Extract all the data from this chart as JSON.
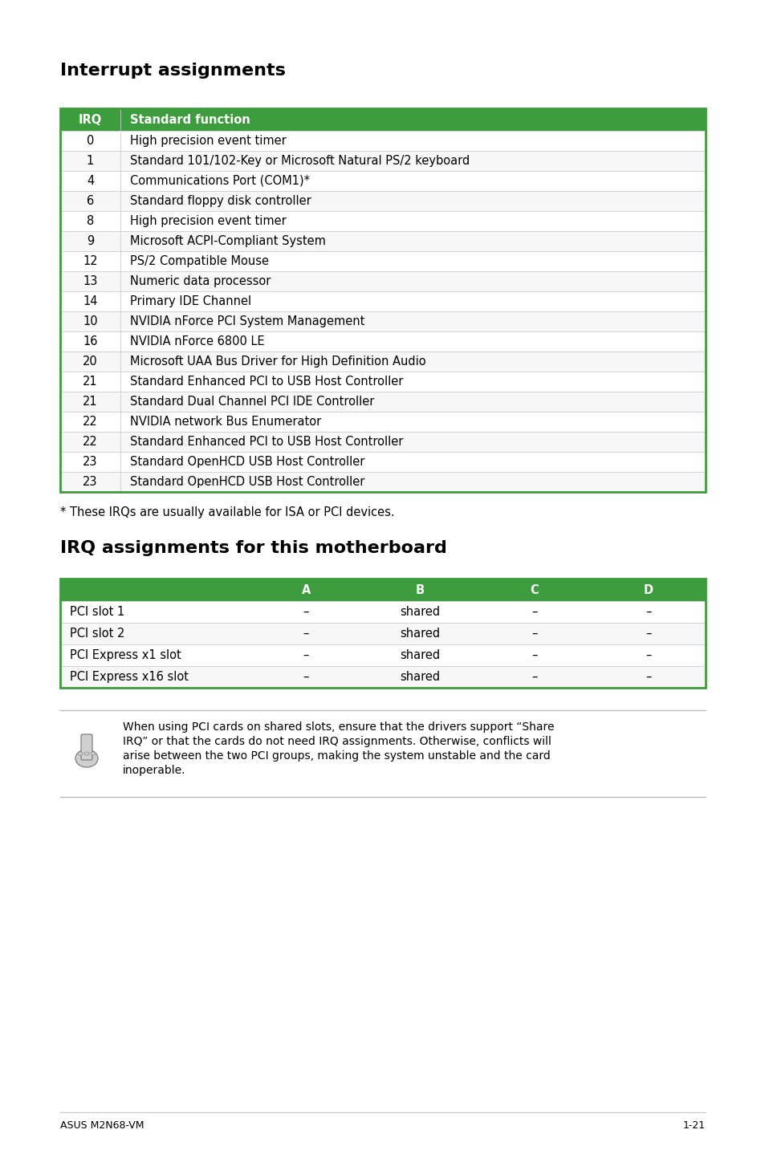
{
  "title1": "Interrupt assignments",
  "title2": "IRQ assignments for this motherboard",
  "header_color": "#3d9c3d",
  "header_text_color": "#ffffff",
  "border_color": "#3d9c3d",
  "text_color": "#000000",
  "irq_rows": [
    [
      "0",
      "High precision event timer"
    ],
    [
      "1",
      "Standard 101/102-Key or Microsoft Natural PS/2 keyboard"
    ],
    [
      "4",
      "Communications Port (COM1)*"
    ],
    [
      "6",
      "Standard floppy disk controller"
    ],
    [
      "8",
      "High precision event timer"
    ],
    [
      "9",
      "Microsoft ACPI-Compliant System"
    ],
    [
      "12",
      "PS/2 Compatible Mouse"
    ],
    [
      "13",
      "Numeric data processor"
    ],
    [
      "14",
      "Primary IDE Channel"
    ],
    [
      "10",
      "NVIDIA nForce PCI System Management"
    ],
    [
      "16",
      "NVIDIA nForce 6800 LE"
    ],
    [
      "20",
      "Microsoft UAA Bus Driver for High Definition Audio"
    ],
    [
      "21",
      "Standard Enhanced PCI to USB Host Controller"
    ],
    [
      "21",
      "Standard Dual Channel PCI IDE Controller"
    ],
    [
      "22",
      "NVIDIA network Bus Enumerator"
    ],
    [
      "22",
      "Standard Enhanced PCI to USB Host Controller"
    ],
    [
      "23",
      "Standard OpenHCD USB Host Controller"
    ],
    [
      "23",
      "Standard OpenHCD USB Host Controller"
    ]
  ],
  "irq_note": "* These IRQs are usually available for ISA or PCI devices.",
  "irq2_rows": [
    [
      "PCI slot 1",
      "–",
      "shared",
      "–",
      "–"
    ],
    [
      "PCI slot 2",
      "–",
      "shared",
      "–",
      "–"
    ],
    [
      "PCI Express x1 slot",
      "–",
      "shared",
      "–",
      "–"
    ],
    [
      "PCI Express x16 slot",
      "–",
      "shared",
      "–",
      "–"
    ]
  ],
  "note_line1": "When using PCI cards on shared slots, ensure that the drivers support “Share",
  "note_line2": "IRQ” or that the cards do not need IRQ assignments. Otherwise, conflicts will",
  "note_line3": "arise between the two PCI groups, making the system unstable and the card",
  "note_line4": "inoperable.",
  "footer_left": "ASUS M2N68-VM",
  "footer_right": "1-21",
  "page_bg": "#ffffff"
}
